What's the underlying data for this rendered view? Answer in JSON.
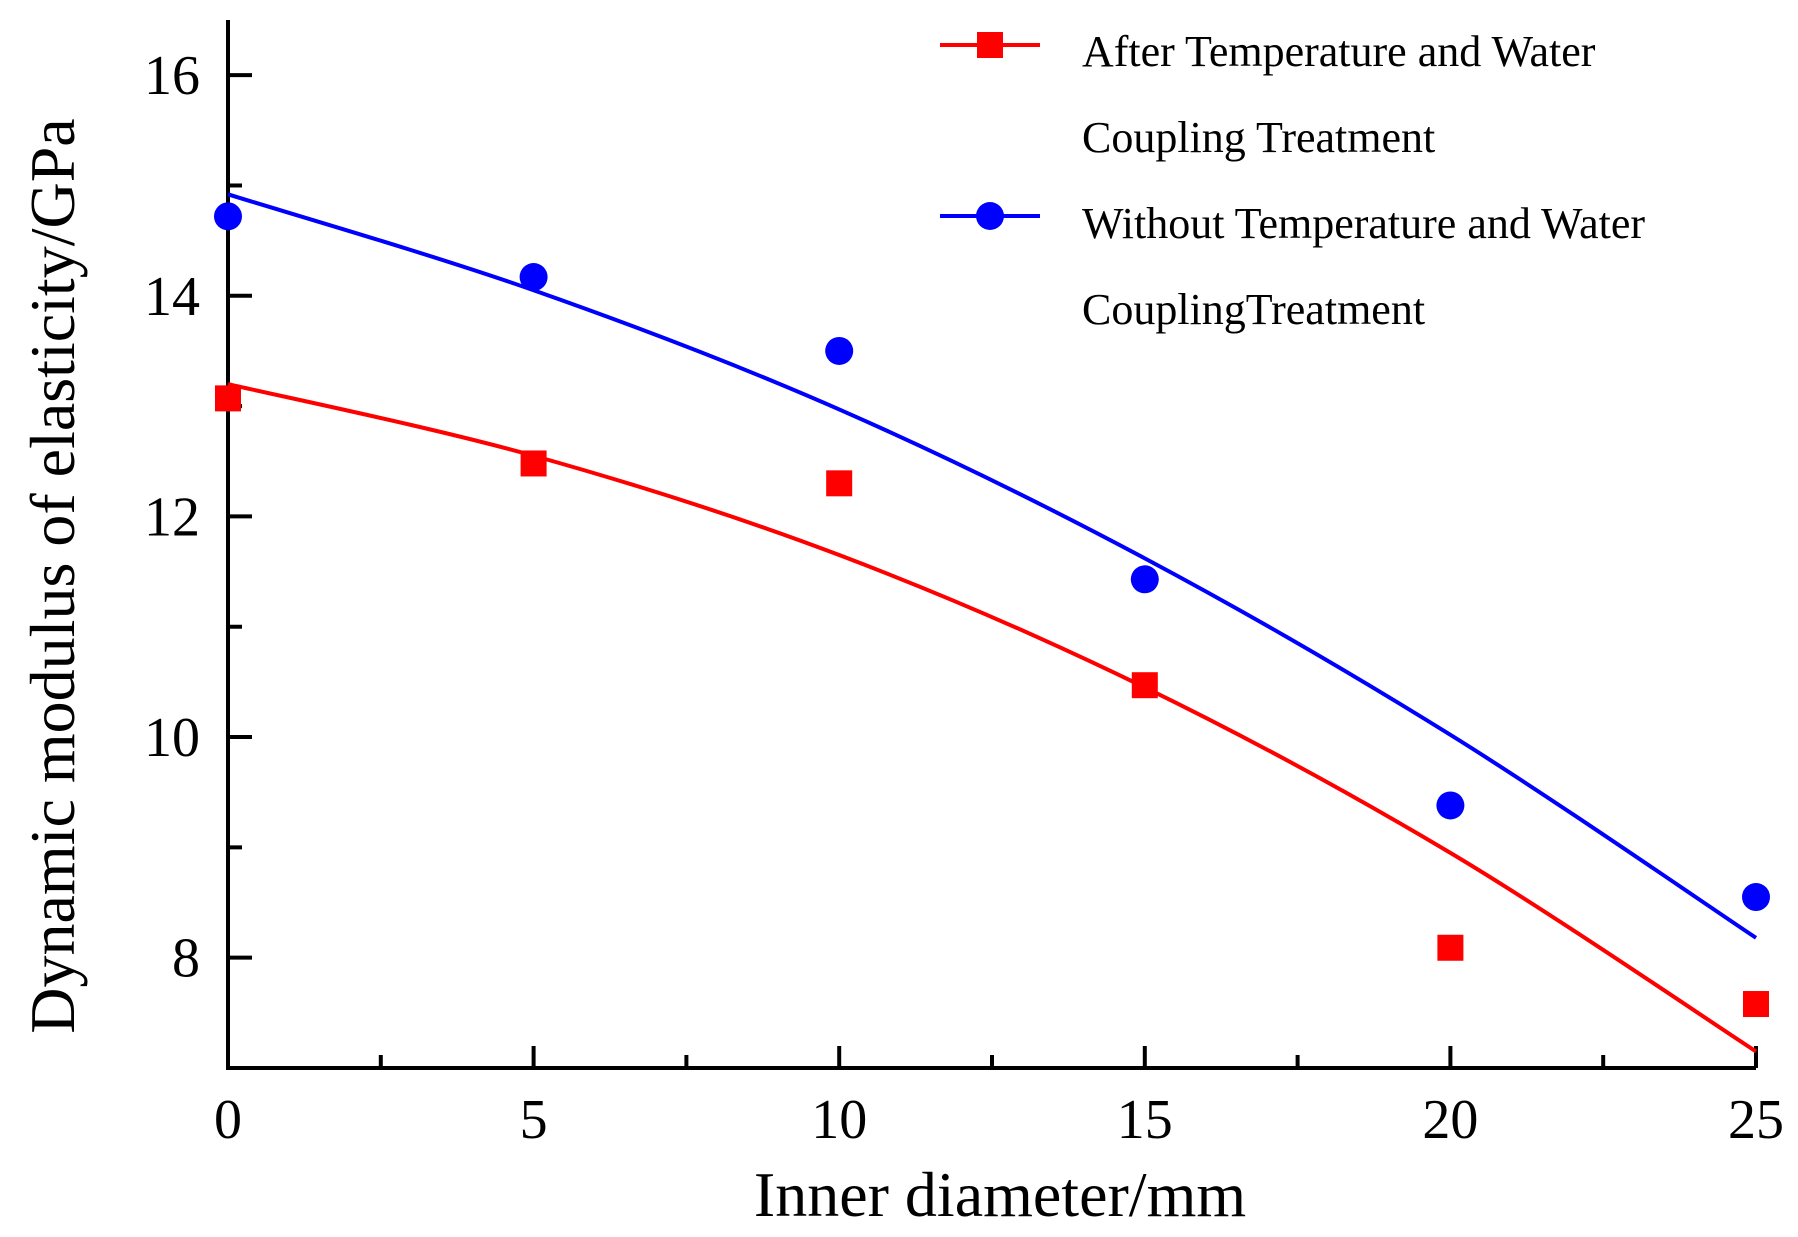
{
  "chart_data": {
    "type": "scatter",
    "title": "",
    "xlabel": "Inner diameter/mm",
    "ylabel": "Dynamic modulus of elasticity/GPa",
    "xlim": [
      0,
      25
    ],
    "ylim": [
      7.0,
      16.5
    ],
    "x_ticks": [
      0,
      5,
      10,
      15,
      20,
      25
    ],
    "x_tick_labels": [
      "0",
      "5",
      "10",
      "15",
      "20",
      "25"
    ],
    "x_minor_ticks": [
      2.5,
      7.5,
      12.5,
      17.5,
      22.5
    ],
    "y_ticks": [
      8,
      10,
      12,
      14,
      16
    ],
    "y_tick_labels": [
      "8",
      "10",
      "12",
      "14",
      "16"
    ],
    "y_minor_ticks": [
      9,
      11,
      13,
      15
    ],
    "legend_position": "top-right",
    "series": [
      {
        "name": "After Temperature and Water Coupling Treatment",
        "legend_lines": [
          "After Temperature and Water",
          "Coupling Treatment"
        ],
        "marker": "square",
        "color": "#ff0000",
        "x": [
          0,
          5,
          10,
          15,
          20,
          25
        ],
        "values": [
          13.07,
          12.48,
          12.3,
          10.47,
          8.09,
          7.58
        ],
        "fit_x": [
          0,
          5,
          10,
          15,
          20,
          25
        ],
        "fit_y": [
          13.2,
          12.55,
          11.65,
          10.45,
          8.95,
          7.15
        ]
      },
      {
        "name": "Without Temperature and Water CouplingTreatment",
        "legend_lines": [
          "Without Temperature and Water",
          "CouplingTreatment"
        ],
        "marker": "circle",
        "color": "#0000ff",
        "x": [
          0,
          5,
          10,
          15,
          20,
          25
        ],
        "values": [
          14.72,
          14.17,
          13.5,
          11.43,
          9.38,
          8.55
        ],
        "fit_x": [
          0,
          5,
          10,
          15,
          20,
          25
        ],
        "fit_y": [
          14.92,
          14.05,
          12.97,
          11.62,
          10.02,
          8.18
        ]
      }
    ]
  }
}
